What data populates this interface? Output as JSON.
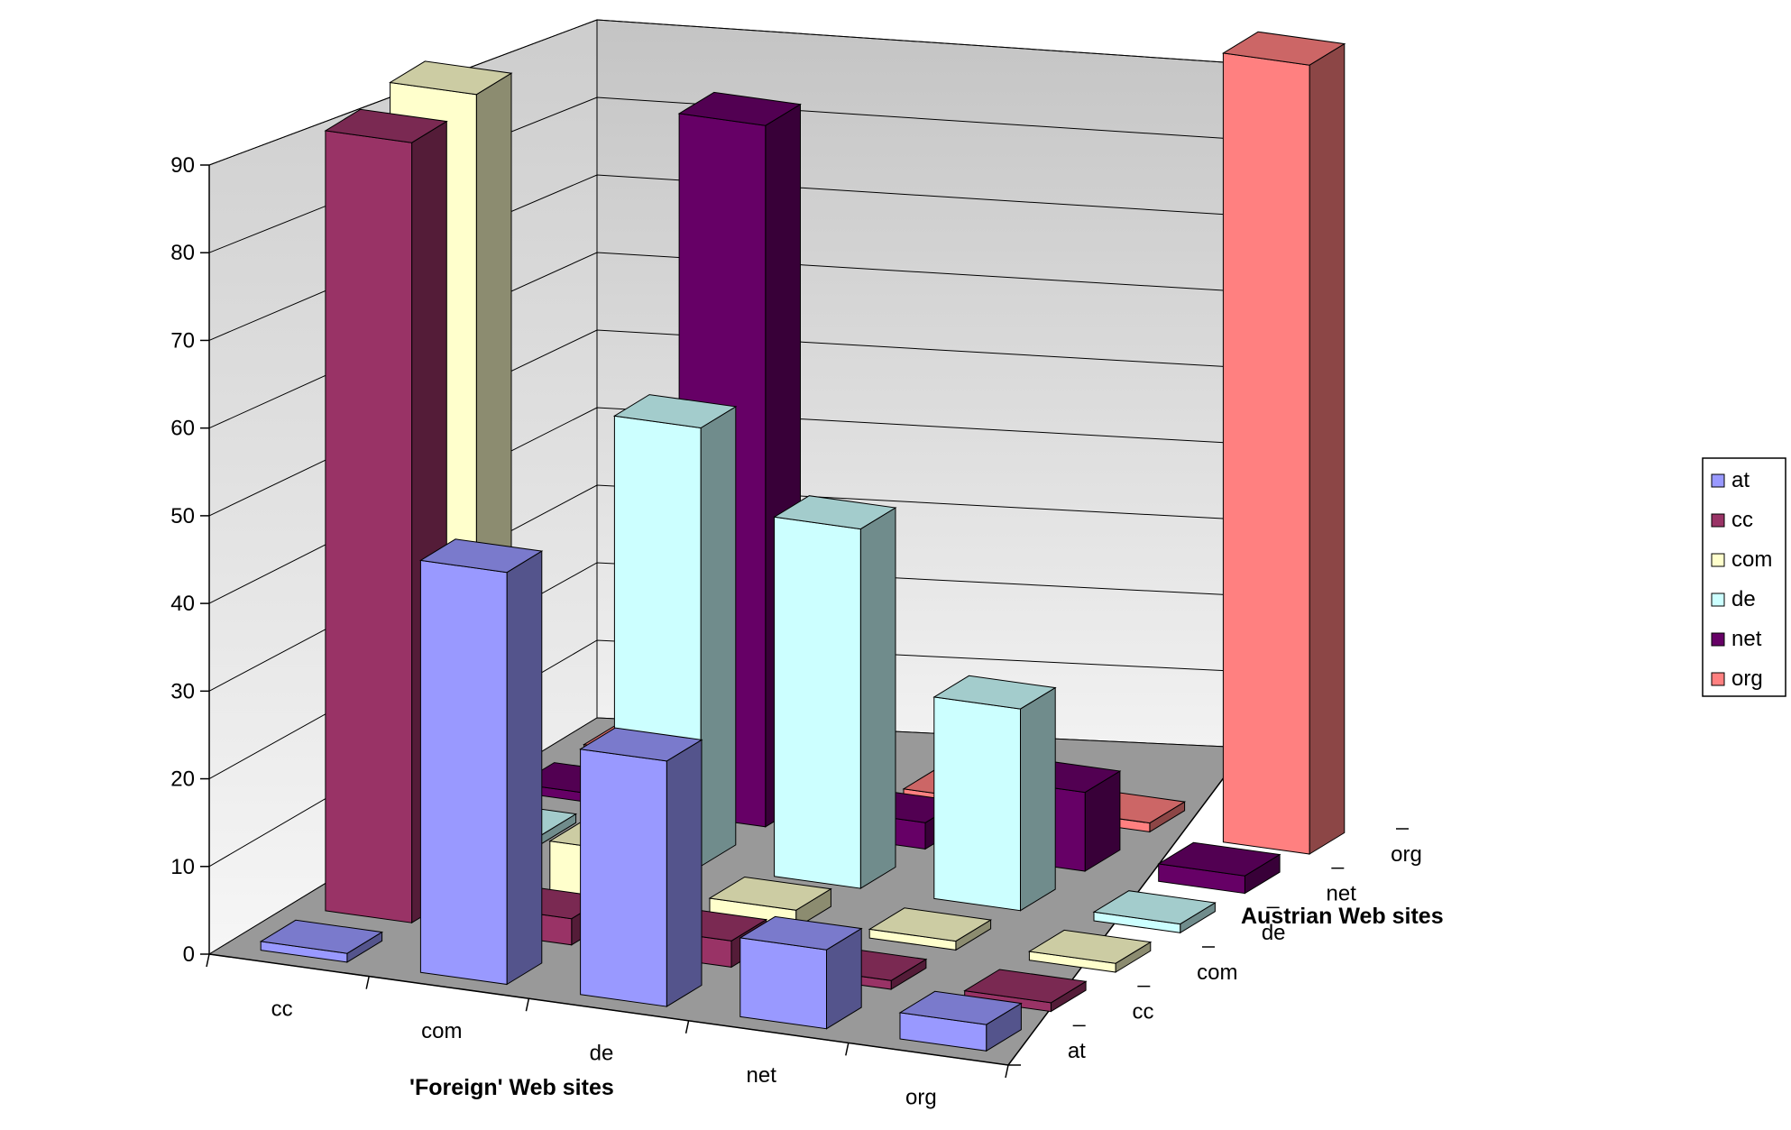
{
  "chart_data": {
    "type": "bar3d",
    "x_categories": [
      "cc",
      "com",
      "de",
      "net",
      "org"
    ],
    "xlabel": "'Foreign' Web sites",
    "depth_categories": [
      "at",
      "cc",
      "com",
      "de",
      "net",
      "org"
    ],
    "depth_label": "Austrian Web sites",
    "yticks": [
      "0",
      "10",
      "20",
      "30",
      "40",
      "50",
      "60",
      "70",
      "80",
      "90"
    ],
    "ylim": [
      0,
      90
    ],
    "grid": true,
    "legend_position": "right",
    "series": [
      {
        "name": "at",
        "color": "#9999ff",
        "values": [
          1,
          47,
          28,
          9,
          3
        ]
      },
      {
        "name": "cc",
        "color": "#993366",
        "values": [
          89,
          3,
          3,
          1,
          1
        ]
      },
      {
        "name": "com",
        "color": "#ffffcc",
        "values": [
          90,
          6,
          2,
          1,
          1
        ]
      },
      {
        "name": "de",
        "color": "#ccffff",
        "values": [
          1,
          50,
          41,
          23,
          1
        ]
      },
      {
        "name": "net",
        "color": "#660066",
        "values": [
          1,
          80,
          3,
          9,
          2
        ]
      },
      {
        "name": "org",
        "color": "#ff8080",
        "values": [
          1,
          1,
          1,
          1,
          90
        ]
      }
    ]
  }
}
